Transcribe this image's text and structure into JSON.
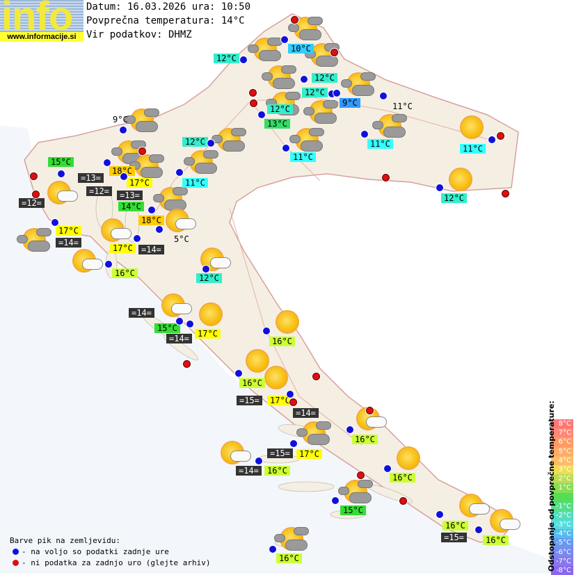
{
  "header": {
    "logo_text": "info",
    "logo_url": "www.informacije.si",
    "date_line": "Datum: 16.03.2026 ura: 10:50",
    "avg_temp_line": "Povprečna temperatura: 14°C",
    "source_line": "Vir podatkov: DHMZ"
  },
  "stations": [
    {
      "temp": "10°C",
      "color": "sky",
      "status": "available"
    },
    {
      "temp": "12°C",
      "color": "teal",
      "status": "available"
    },
    {
      "temp": "12°C",
      "color": "teal",
      "status": "available"
    },
    {
      "temp": "12°C",
      "color": "teal",
      "status": "available"
    },
    {
      "temp": "9°C",
      "color": "blue",
      "status": "available"
    },
    {
      "temp": "11°C",
      "color": "plain",
      "status": "available"
    },
    {
      "temp": "12°C",
      "color": "teal",
      "status": "available"
    },
    {
      "temp": "13°C",
      "color": "g13",
      "status": "available"
    },
    {
      "temp": "12°C",
      "color": "teal",
      "status": "available"
    },
    {
      "temp": "11°C",
      "color": "cyan",
      "status": "available"
    },
    {
      "temp": "11°C",
      "color": "cyan",
      "status": "available"
    },
    {
      "temp": "11°C",
      "color": "cyan",
      "status": "available"
    },
    {
      "temp": "11°C",
      "color": "cyan",
      "status": "available"
    },
    {
      "temp": "12°C",
      "color": "teal",
      "status": "available"
    },
    {
      "temp": "9°C",
      "color": "plain",
      "status": "available"
    },
    {
      "temp": "15°C",
      "color": "green",
      "status": "available"
    },
    {
      "temp": "=13=",
      "color": "dark",
      "status": "available"
    },
    {
      "temp": "18°C",
      "color": "or",
      "status": "available"
    },
    {
      "temp": "=12=",
      "color": "dark",
      "status": "available"
    },
    {
      "temp": "17°C",
      "color": "yel",
      "status": "available"
    },
    {
      "temp": "14°C",
      "color": "green",
      "status": "available"
    },
    {
      "temp": "=13=",
      "color": "dark",
      "status": "available"
    },
    {
      "temp": "=12=",
      "color": "dark",
      "status": "no-data"
    },
    {
      "temp": "17°C",
      "color": "yel",
      "status": "available"
    },
    {
      "temp": "=14=",
      "color": "dark",
      "status": "available"
    },
    {
      "temp": "18°C",
      "color": "or",
      "status": "available"
    },
    {
      "temp": "5°C",
      "color": "plain",
      "status": "available"
    },
    {
      "temp": "17°C",
      "color": "yel",
      "status": "available"
    },
    {
      "temp": "=14=",
      "color": "dark",
      "status": "available"
    },
    {
      "temp": "16°C",
      "color": "gy",
      "status": "available"
    },
    {
      "temp": "12°C",
      "color": "teal",
      "status": "available"
    },
    {
      "temp": "=14=",
      "color": "dark",
      "status": "available"
    },
    {
      "temp": "15°C",
      "color": "green",
      "status": "available"
    },
    {
      "temp": "17°C",
      "color": "yel",
      "status": "available"
    },
    {
      "temp": "=14=",
      "color": "dark",
      "status": "available"
    },
    {
      "temp": "16°C",
      "color": "gy",
      "status": "available"
    },
    {
      "temp": "16°C",
      "color": "gy",
      "status": "available"
    },
    {
      "temp": "=15=",
      "color": "dark",
      "status": "available"
    },
    {
      "temp": "17°C",
      "color": "yel",
      "status": "available"
    },
    {
      "temp": "=14=",
      "color": "dark",
      "status": "no-data"
    },
    {
      "temp": "16°C",
      "color": "gy",
      "status": "available"
    },
    {
      "temp": "17°C",
      "color": "yel",
      "status": "available"
    },
    {
      "temp": "=15=",
      "color": "dark",
      "status": "available"
    },
    {
      "temp": "=14=",
      "color": "dark",
      "status": "available"
    },
    {
      "temp": "16°C",
      "color": "gy",
      "status": "available"
    },
    {
      "temp": "16°C",
      "color": "gy",
      "status": "available"
    },
    {
      "temp": "15°C",
      "color": "green",
      "status": "available"
    },
    {
      "temp": "16°C",
      "color": "gy",
      "status": "available"
    },
    {
      "temp": "=15=",
      "color": "dark",
      "status": "available"
    },
    {
      "temp": "16°C",
      "color": "gy",
      "status": "available"
    },
    {
      "temp": "16°C",
      "color": "gy",
      "status": "available"
    }
  ],
  "no_data_points": [
    "no-data",
    "no-data",
    "no-data",
    "no-data",
    "no-data",
    "no-data",
    "no-data",
    "no-data",
    "no-data",
    "no-data",
    "no-data",
    "no-data",
    "no-data",
    "no-data",
    "no-data",
    "no-data"
  ],
  "weather_icons": [
    "partly-cloudy",
    "partly-cloudy",
    "partly-cloudy",
    "partly-cloudy",
    "partly-cloudy",
    "partly-cloudy",
    "partly-cloudy",
    "partly-cloudy",
    "partly-cloudy",
    "partly-cloudy",
    "partly-cloudy",
    "partly-cloudy",
    "partly-cloudy",
    "partly-cloudy",
    "partly-cloudy",
    "partly-cloudy",
    "partly-cloudy",
    "partly-cloudy",
    "partly-cloudy",
    "sun-white-cloud",
    "sun-white-cloud",
    "sun-white-cloud",
    "sun-white-cloud",
    "sun-white-cloud",
    "sun-white-cloud",
    "sun-white-cloud",
    "sun-white-cloud",
    "sun-white-cloud",
    "sun-white-cloud",
    "sunny",
    "sunny",
    "sunny",
    "sunny",
    "sunny",
    "sunny",
    "sunny"
  ],
  "legend": {
    "title": "Barve pik na zemljevidu:",
    "available": "- na voljo so podatki zadnje ure",
    "no_data": "- ni podatka za zadnjo uro (glejte arhiv)",
    "available_color": "#1010dd",
    "no_data_color": "#dd1010"
  },
  "scale": {
    "title": "Odstopanje od povprečne temperature:",
    "steps": [
      {
        "label": "8°C",
        "color": "#ff7777"
      },
      {
        "label": "7°C",
        "color": "#ff8877"
      },
      {
        "label": "6°C",
        "color": "#ff9966"
      },
      {
        "label": "5°C",
        "color": "#ffaa66"
      },
      {
        "label": "4°C",
        "color": "#ffbb66"
      },
      {
        "label": "3°C",
        "color": "#eedd55"
      },
      {
        "label": "2°C",
        "color": "#bbdd55"
      },
      {
        "label": "1°C",
        "color": "#88dd55"
      },
      {
        "label": "",
        "color": "#55dd55"
      },
      {
        "label": "-1°C",
        "color": "#55dd88"
      },
      {
        "label": "-2°C",
        "color": "#55ddbb"
      },
      {
        "label": "-3°C",
        "color": "#55dddd"
      },
      {
        "label": "-4°C",
        "color": "#55bbee"
      },
      {
        "label": "-5°C",
        "color": "#6699ee"
      },
      {
        "label": "-6°C",
        "color": "#7788ee"
      },
      {
        "label": "-7°C",
        "color": "#8877ee"
      },
      {
        "label": "-8°C",
        "color": "#8866ee"
      }
    ]
  }
}
